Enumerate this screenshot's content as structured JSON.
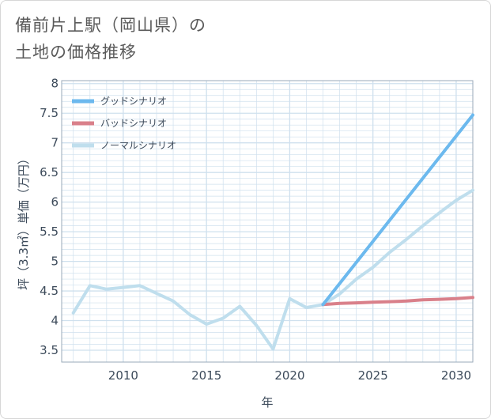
{
  "title": {
    "line1": "備前片上駅（岡山県）の",
    "line2": "土地の価格推移"
  },
  "colors": {
    "good": "#6cb9ee",
    "bad": "#d9808a",
    "normal": "#bfdeed",
    "grid": "#cfe0ee",
    "frame": "#9aa9b8"
  },
  "chart_data": {
    "type": "line",
    "xlabel": "年",
    "ylabel": "坪（3.3㎡）単価（万円）",
    "xlim": [
      2006.3,
      2031
    ],
    "ylim": [
      3.3,
      8.05
    ],
    "xticks": [
      2010,
      2015,
      2020,
      2025,
      2030
    ],
    "yticks": [
      3.5,
      4,
      4.5,
      5,
      5.5,
      6,
      6.5,
      7,
      7.5,
      8
    ],
    "grid": true,
    "legend_position": "top-left",
    "series": [
      {
        "name": "グッドシナリオ",
        "color": "#6cb9ee",
        "x": [
          2022,
          2031
        ],
        "y": [
          4.27,
          7.47
        ]
      },
      {
        "name": "バッドシナリオ",
        "color": "#d9808a",
        "x": [
          2022,
          2023,
          2024,
          2025,
          2026,
          2027,
          2028,
          2029,
          2030,
          2031
        ],
        "y": [
          4.27,
          4.29,
          4.3,
          4.31,
          4.32,
          4.33,
          4.35,
          4.36,
          4.37,
          4.39
        ]
      },
      {
        "name": "ノーマルシナリオ",
        "color": "#bfdeed",
        "x": [
          2007,
          2008,
          2009,
          2010,
          2011,
          2012,
          2013,
          2014,
          2015,
          2016,
          2017,
          2018,
          2019,
          2020,
          2021,
          2022,
          2023,
          2024,
          2025,
          2026,
          2027,
          2028,
          2029,
          2030,
          2031
        ],
        "y": [
          4.13,
          4.59,
          4.53,
          4.56,
          4.59,
          4.46,
          4.33,
          4.1,
          3.94,
          4.04,
          4.24,
          3.92,
          3.52,
          4.37,
          4.22,
          4.27,
          4.45,
          4.7,
          4.9,
          5.15,
          5.37,
          5.6,
          5.82,
          6.03,
          6.2
        ]
      }
    ]
  }
}
